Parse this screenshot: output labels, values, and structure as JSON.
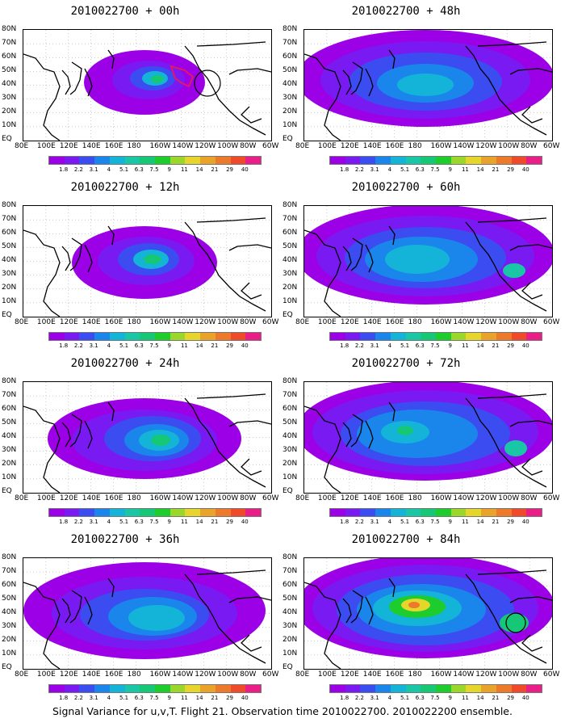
{
  "figure": {
    "caption": "Signal Variance for u,v,T. Flight 21. Observation time 2010022700. 2010022200 ensemble."
  },
  "colorbar": {
    "colors": [
      "#9b00e6",
      "#7a1af2",
      "#3b4cf0",
      "#1a86ec",
      "#14b4d8",
      "#19c6a6",
      "#16c775",
      "#1ccd2d",
      "#9bd62b",
      "#e6d52a",
      "#eaa32a",
      "#ed7a2a",
      "#ef4b2a",
      "#ea1e87"
    ],
    "labels": [
      "1.8",
      "2.2",
      "3.1",
      "4",
      "5.1",
      "6.3",
      "7.5",
      "9",
      "11",
      "14",
      "21",
      "29",
      "40"
    ]
  },
  "axes": {
    "lat_labels": [
      "80N",
      "70N",
      "60N",
      "50N",
      "40N",
      "30N",
      "20N",
      "10N",
      "EQ"
    ],
    "lon_labels": [
      "80E",
      "100E",
      "120E",
      "140E",
      "160E",
      "180",
      "160W",
      "140W",
      "120W",
      "100W",
      "80W",
      "60W"
    ]
  },
  "panels": [
    {
      "title": "2010022700 + 00h",
      "stage": 0
    },
    {
      "title": "2010022700 + 48h",
      "stage": 4
    },
    {
      "title": "2010022700 + 12h",
      "stage": 1
    },
    {
      "title": "2010022700 + 60h",
      "stage": 5
    },
    {
      "title": "2010022700 + 24h",
      "stage": 2
    },
    {
      "title": "2010022700 + 72h",
      "stage": 6
    },
    {
      "title": "2010022700 + 36h",
      "stage": 3
    },
    {
      "title": "2010022700 + 84h",
      "stage": 7
    }
  ]
}
